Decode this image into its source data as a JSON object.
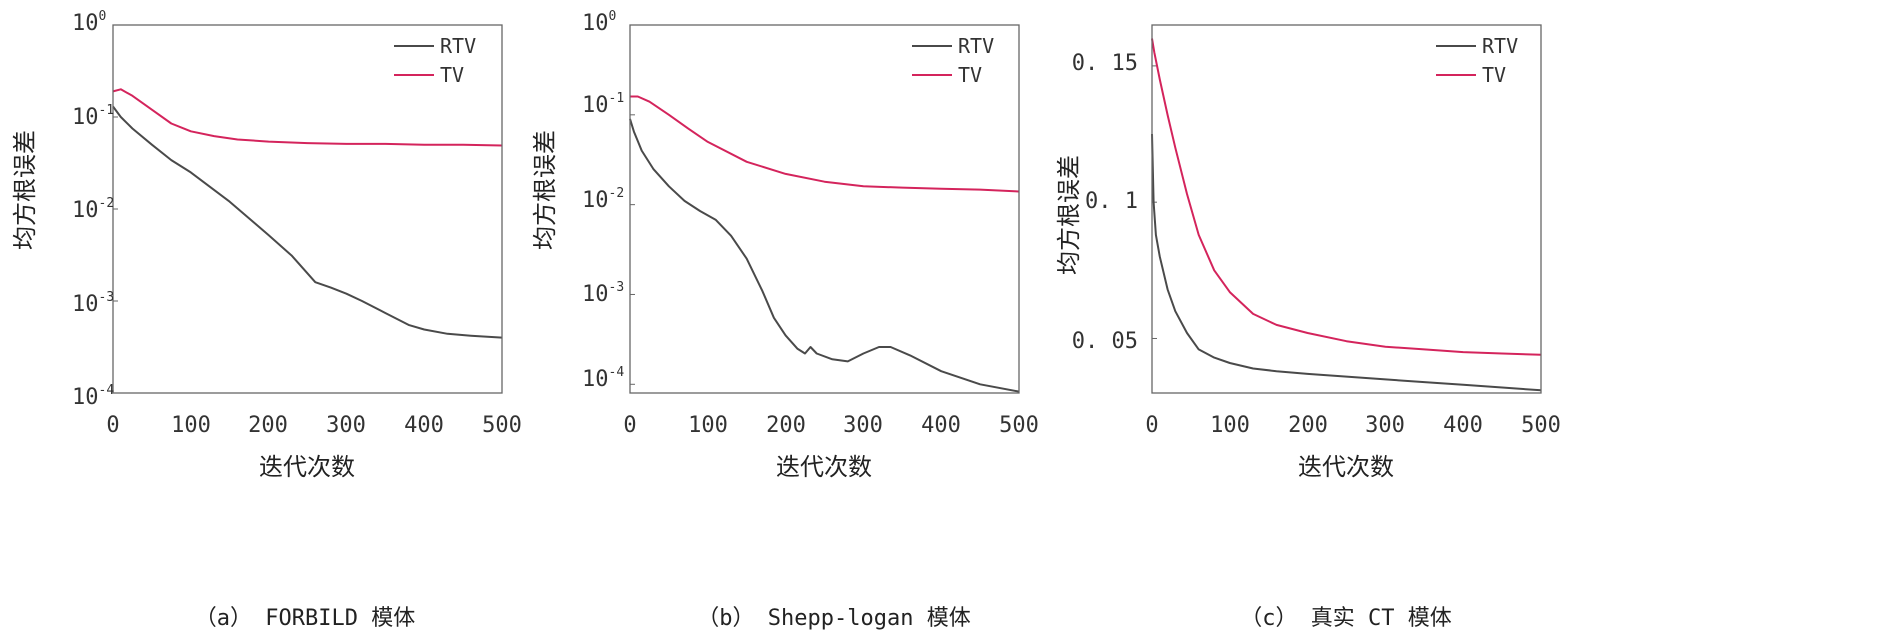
{
  "colors": {
    "rtv": "#4a4a4a",
    "tv": "#d4245c",
    "axis": "#666666"
  },
  "chart_data": [
    {
      "type": "line",
      "caption": "（a） FORBILD 模体",
      "xlabel": "迭代次数",
      "ylabel": "均方根误差",
      "scale": "log",
      "xlim": [
        0,
        500
      ],
      "ylim": [
        0.0001,
        1
      ],
      "xticks": [
        "0",
        "100",
        "200",
        "300",
        "400",
        "500"
      ],
      "yticks": [
        {
          "base": "10",
          "exp": "0",
          "v": 1
        },
        {
          "base": "10",
          "exp": "-1",
          "v": 0.1
        },
        {
          "base": "10",
          "exp": "-2",
          "v": 0.01
        },
        {
          "base": "10",
          "exp": "-3",
          "v": 0.001
        },
        {
          "base": "10",
          "exp": "-4",
          "v": 0.0001
        }
      ],
      "legend_position": "top-right",
      "series": [
        {
          "name": "RTV",
          "color": "#4a4a4a",
          "x": [
            0,
            10,
            25,
            50,
            75,
            100,
            150,
            200,
            230,
            260,
            280,
            300,
            320,
            350,
            380,
            400,
            430,
            460,
            500
          ],
          "y": [
            0.13,
            0.1,
            0.075,
            0.05,
            0.034,
            0.025,
            0.012,
            0.0052,
            0.0031,
            0.0016,
            0.0014,
            0.0012,
            0.001,
            0.00074,
            0.00055,
            0.00049,
            0.00044,
            0.00042,
            0.0004
          ]
        },
        {
          "name": "TV",
          "color": "#d4245c",
          "x": [
            0,
            10,
            25,
            50,
            75,
            100,
            130,
            160,
            200,
            250,
            300,
            350,
            400,
            450,
            500
          ],
          "y": [
            0.19,
            0.2,
            0.17,
            0.12,
            0.085,
            0.07,
            0.062,
            0.057,
            0.054,
            0.052,
            0.051,
            0.051,
            0.05,
            0.05,
            0.049
          ]
        }
      ]
    },
    {
      "type": "line",
      "caption": "（b） Shepp-logan 模体",
      "xlabel": "迭代次数",
      "ylabel": "均方根误差",
      "scale": "log",
      "xlim": [
        0,
        500
      ],
      "ylim": [
        8e-05,
        1
      ],
      "xticks": [
        "0",
        "100",
        "200",
        "300",
        "400",
        "500"
      ],
      "yticks": [
        {
          "base": "10",
          "exp": "0",
          "v": 1
        },
        {
          "base": "10",
          "exp": "-1",
          "v": 0.1
        },
        {
          "base": "10",
          "exp": "-2",
          "v": 0.01
        },
        {
          "base": "10",
          "exp": "-3",
          "v": 0.001
        },
        {
          "base": "10",
          "exp": "-4",
          "v": 0.0001
        }
      ],
      "legend_position": "top-right",
      "series": [
        {
          "name": "RTV",
          "color": "#4a4a4a",
          "x": [
            0,
            5,
            15,
            30,
            50,
            70,
            90,
            110,
            130,
            150,
            170,
            185,
            200,
            215,
            225,
            232,
            240,
            260,
            280,
            300,
            320,
            335,
            360,
            400,
            450,
            500
          ],
          "y": [
            0.09,
            0.065,
            0.04,
            0.025,
            0.016,
            0.011,
            0.0085,
            0.0068,
            0.0045,
            0.0025,
            0.0011,
            0.00055,
            0.00035,
            0.00025,
            0.00022,
            0.00026,
            0.00022,
            0.00019,
            0.00018,
            0.00022,
            0.00026,
            0.00026,
            0.00021,
            0.00014,
            0.0001,
            8.3e-05
          ]
        },
        {
          "name": "TV",
          "color": "#d4245c",
          "x": [
            0,
            10,
            25,
            50,
            75,
            100,
            150,
            200,
            250,
            300,
            350,
            400,
            450,
            500
          ],
          "y": [
            0.16,
            0.16,
            0.14,
            0.1,
            0.07,
            0.05,
            0.03,
            0.022,
            0.018,
            0.016,
            0.0155,
            0.015,
            0.0147,
            0.014
          ]
        }
      ]
    },
    {
      "type": "line",
      "caption": "（c） 真实 CT 模体",
      "xlabel": "迭代次数",
      "ylabel": "均方根误差",
      "scale": "linear",
      "xlim": [
        0,
        500
      ],
      "ylim": [
        0.03,
        0.165
      ],
      "xticks": [
        "0",
        "100",
        "200",
        "300",
        "400",
        "500"
      ],
      "yticks": [
        {
          "label": "0. 15",
          "v": 0.15
        },
        {
          "label": "0. 1",
          "v": 0.1
        },
        {
          "label": "0. 05",
          "v": 0.05
        }
      ],
      "legend_position": "top-right",
      "series": [
        {
          "name": "RTV",
          "color": "#4a4a4a",
          "x": [
            0,
            2,
            5,
            10,
            20,
            30,
            45,
            60,
            80,
            100,
            130,
            160,
            200,
            250,
            300,
            350,
            400,
            450,
            500
          ],
          "y": [
            0.125,
            0.1,
            0.088,
            0.08,
            0.068,
            0.06,
            0.052,
            0.046,
            0.043,
            0.041,
            0.039,
            0.038,
            0.037,
            0.036,
            0.035,
            0.034,
            0.033,
            0.032,
            0.031
          ]
        },
        {
          "name": "TV",
          "color": "#d4245c",
          "x": [
            0,
            3,
            10,
            20,
            30,
            45,
            60,
            80,
            100,
            130,
            160,
            200,
            250,
            300,
            350,
            400,
            450,
            500
          ],
          "y": [
            0.16,
            0.155,
            0.145,
            0.132,
            0.12,
            0.103,
            0.088,
            0.075,
            0.067,
            0.059,
            0.055,
            0.052,
            0.049,
            0.047,
            0.046,
            0.045,
            0.0445,
            0.044
          ]
        }
      ]
    }
  ]
}
